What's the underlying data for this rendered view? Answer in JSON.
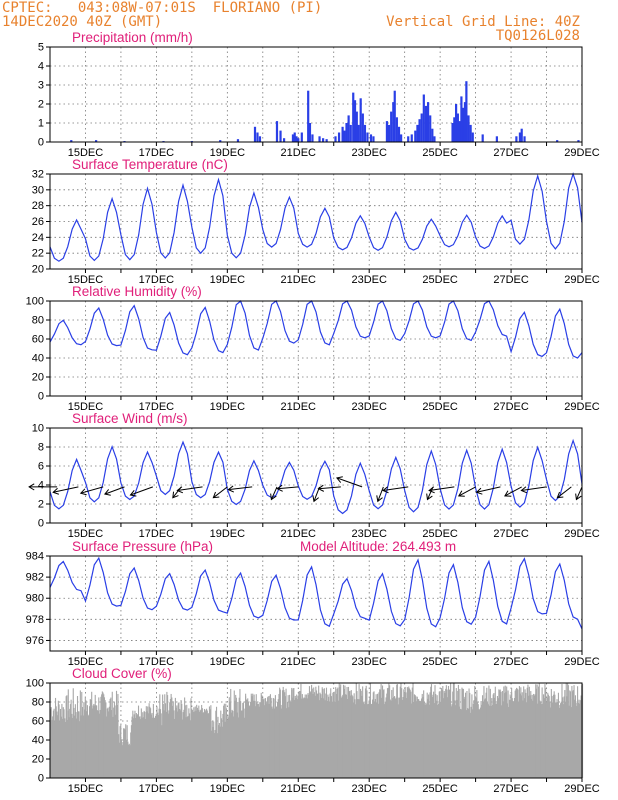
{
  "header": {
    "line1_left": "CPTEC:   043:08W-07:01S  FLORIANO (PI)",
    "line2_left": "14DEC2020 40Z (GMT)",
    "line1_right": "Vertical Grid Line: 40Z",
    "line2_right": "TQ0126L028"
  },
  "colors": {
    "header": "#e8822e",
    "panel_title": "#e0207a",
    "series": "#2a3fe6",
    "cloud": "#a8a8a8"
  },
  "x_tick_labels": [
    "15DEC",
    "17DEC",
    "19DEC",
    "21DEC",
    "23DEC",
    "25DEC",
    "27DEC",
    "29DEC"
  ],
  "chart_data": [
    {
      "type": "bar",
      "title": "Precipitation (mm/h)",
      "ylim": [
        0,
        5
      ],
      "yticks": [
        0,
        1,
        2,
        3,
        4,
        5
      ],
      "x_range_days": [
        14,
        29
      ],
      "grid": true,
      "bars": [
        {
          "x": 14.6,
          "y": 0.1
        },
        {
          "x": 15.3,
          "y": 0.1
        },
        {
          "x": 16.1,
          "y": 0.05
        },
        {
          "x": 17.2,
          "y": 0.05
        },
        {
          "x": 18.0,
          "y": 0.05
        },
        {
          "x": 18.8,
          "y": 0.1
        },
        {
          "x": 19.3,
          "y": 0.15
        },
        {
          "x": 19.78,
          "y": 0.8
        },
        {
          "x": 19.85,
          "y": 0.5
        },
        {
          "x": 19.92,
          "y": 0.3
        },
        {
          "x": 20.4,
          "y": 1.1
        },
        {
          "x": 20.5,
          "y": 0.6
        },
        {
          "x": 20.6,
          "y": 0.2
        },
        {
          "x": 20.85,
          "y": 0.4
        },
        {
          "x": 20.9,
          "y": 0.5
        },
        {
          "x": 20.95,
          "y": 0.3
        },
        {
          "x": 21.0,
          "y": 0.2
        },
        {
          "x": 21.1,
          "y": 0.5
        },
        {
          "x": 21.28,
          "y": 2.7
        },
        {
          "x": 21.33,
          "y": 1.0
        },
        {
          "x": 21.4,
          "y": 0.4
        },
        {
          "x": 21.6,
          "y": 0.3
        },
        {
          "x": 21.7,
          "y": 0.2
        },
        {
          "x": 21.8,
          "y": 0.15
        },
        {
          "x": 22.05,
          "y": 0.3
        },
        {
          "x": 22.15,
          "y": 0.5
        },
        {
          "x": 22.25,
          "y": 0.8
        },
        {
          "x": 22.3,
          "y": 0.6
        },
        {
          "x": 22.36,
          "y": 1.0
        },
        {
          "x": 22.42,
          "y": 1.4
        },
        {
          "x": 22.48,
          "y": 0.9
        },
        {
          "x": 22.55,
          "y": 2.6
        },
        {
          "x": 22.6,
          "y": 2.2
        },
        {
          "x": 22.65,
          "y": 1.6
        },
        {
          "x": 22.7,
          "y": 0.9
        },
        {
          "x": 22.76,
          "y": 2.3
        },
        {
          "x": 22.82,
          "y": 1.5
        },
        {
          "x": 22.88,
          "y": 0.9
        },
        {
          "x": 22.95,
          "y": 0.5
        },
        {
          "x": 23.05,
          "y": 0.4
        },
        {
          "x": 23.12,
          "y": 0.3
        },
        {
          "x": 23.5,
          "y": 1.1
        },
        {
          "x": 23.56,
          "y": 0.9
        },
        {
          "x": 23.62,
          "y": 1.6
        },
        {
          "x": 23.68,
          "y": 2.1
        },
        {
          "x": 23.72,
          "y": 2.7
        },
        {
          "x": 23.78,
          "y": 1.3
        },
        {
          "x": 23.84,
          "y": 0.8
        },
        {
          "x": 23.9,
          "y": 0.4
        },
        {
          "x": 24.1,
          "y": 0.3
        },
        {
          "x": 24.2,
          "y": 0.4
        },
        {
          "x": 24.3,
          "y": 0.6
        },
        {
          "x": 24.36,
          "y": 0.9
        },
        {
          "x": 24.42,
          "y": 1.2
        },
        {
          "x": 24.48,
          "y": 1.5
        },
        {
          "x": 24.54,
          "y": 2.5
        },
        {
          "x": 24.6,
          "y": 1.9
        },
        {
          "x": 24.66,
          "y": 2.1
        },
        {
          "x": 24.72,
          "y": 1.4
        },
        {
          "x": 24.78,
          "y": 0.7
        },
        {
          "x": 24.84,
          "y": 0.3
        },
        {
          "x": 25.35,
          "y": 1.0
        },
        {
          "x": 25.4,
          "y": 1.3
        },
        {
          "x": 25.45,
          "y": 2.0
        },
        {
          "x": 25.5,
          "y": 1.5
        },
        {
          "x": 25.55,
          "y": 1.1
        },
        {
          "x": 25.6,
          "y": 2.4
        },
        {
          "x": 25.65,
          "y": 1.8
        },
        {
          "x": 25.7,
          "y": 2.1
        },
        {
          "x": 25.74,
          "y": 3.2
        },
        {
          "x": 25.8,
          "y": 1.4
        },
        {
          "x": 25.86,
          "y": 0.9
        },
        {
          "x": 25.92,
          "y": 0.5
        },
        {
          "x": 26.2,
          "y": 0.4
        },
        {
          "x": 26.6,
          "y": 0.3
        },
        {
          "x": 27.15,
          "y": 0.3
        },
        {
          "x": 27.25,
          "y": 0.5
        },
        {
          "x": 27.3,
          "y": 0.7
        },
        {
          "x": 27.38,
          "y": 0.3
        },
        {
          "x": 28.3,
          "y": 0.1
        },
        {
          "x": 28.9,
          "y": 0.1
        }
      ]
    },
    {
      "type": "line",
      "title": "Surface Temperature (nC)",
      "ylim": [
        20,
        32
      ],
      "yticks": [
        20,
        22,
        24,
        26,
        28,
        30,
        32
      ],
      "x_range_days": [
        14,
        29
      ],
      "grid": true,
      "daily_extremes": {
        "days": [
          14,
          15,
          16,
          17,
          18,
          19,
          20,
          21,
          22,
          23,
          24,
          25,
          26,
          27,
          28,
          29
        ],
        "max": [
          25.8,
          28.3,
          29.5,
          29.9,
          30.6,
          29.0,
          28.6,
          27.3,
          26.4,
          26.8,
          26.0,
          26.5,
          26.4,
          31.1,
          31.7,
          31.5
        ],
        "min": [
          20.6,
          20.5,
          20.5,
          20.7,
          21.3,
          20.8,
          22.3,
          22.4,
          22.1,
          22.0,
          22.1,
          22.5,
          22.3,
          22.5,
          21.8,
          21.7
        ]
      }
    },
    {
      "type": "line",
      "title": "Relative Humidity (%)",
      "ylim": [
        0,
        100
      ],
      "yticks": [
        0,
        20,
        40,
        60,
        80,
        100
      ],
      "x_range_days": [
        14,
        29
      ],
      "grid": true,
      "daily_extremes": {
        "days": [
          14,
          15,
          16,
          17,
          18,
          19,
          20,
          21,
          22,
          23,
          24,
          25,
          26,
          27,
          28,
          29
        ],
        "max": [
          78,
          90,
          92,
          85,
          90,
          100,
          100,
          100,
          100,
          100,
          100,
          100,
          100,
          85,
          88,
          80
        ],
        "min": [
          52,
          50,
          45,
          40,
          42,
          44,
          52,
          50,
          58,
          55,
          58,
          55,
          60,
          38,
          36,
          38
        ]
      }
    },
    {
      "type": "line",
      "title": "Surface Wind (m/s)",
      "ylim": [
        0,
        10
      ],
      "yticks": [
        0,
        2,
        4,
        6,
        8,
        10
      ],
      "x_range_days": [
        14,
        29
      ],
      "grid": true,
      "daily_extremes": {
        "days": [
          14,
          15,
          16,
          17,
          18,
          19,
          20,
          21,
          22,
          23,
          24,
          25,
          26,
          27,
          28,
          29
        ],
        "max": [
          6.3,
          7.6,
          7.1,
          8.1,
          7.1,
          6.2,
          6.1,
          6.2,
          5.9,
          6.5,
          7.1,
          7.2,
          7.3,
          7.5,
          8.2,
          6.4
        ],
        "min": [
          1.1,
          1.8,
          2.1,
          2.6,
          2.3,
          1.6,
          2.4,
          2.2,
          0.6,
          1.1,
          0.7,
          1.0,
          1.0,
          1.2,
          1.9,
          2.4
        ]
      },
      "wind_barbs": [
        {
          "day": 14.2,
          "u": -1.0,
          "v": 0.0
        },
        {
          "day": 14.8,
          "u": -0.9,
          "v": -0.3
        },
        {
          "day": 15.5,
          "u": -0.8,
          "v": -0.35
        },
        {
          "day": 16.1,
          "u": -0.7,
          "v": -0.4
        },
        {
          "day": 16.9,
          "u": -0.8,
          "v": -0.45
        },
        {
          "day": 17.7,
          "u": -0.3,
          "v": -0.6
        },
        {
          "day": 18.3,
          "u": -0.9,
          "v": -0.2
        },
        {
          "day": 19.0,
          "u": -0.5,
          "v": -0.6
        },
        {
          "day": 19.7,
          "u": -0.85,
          "v": -0.15
        },
        {
          "day": 20.4,
          "u": -0.2,
          "v": -0.7
        },
        {
          "day": 21.0,
          "u": -0.75,
          "v": -0.1
        },
        {
          "day": 21.6,
          "u": -0.2,
          "v": -0.8
        },
        {
          "day": 22.2,
          "u": -0.8,
          "v": -0.1
        },
        {
          "day": 22.8,
          "u": -0.9,
          "v": 0.5
        },
        {
          "day": 23.4,
          "u": -0.2,
          "v": -0.8
        },
        {
          "day": 24.1,
          "u": -0.9,
          "v": -0.2
        },
        {
          "day": 24.8,
          "u": -0.2,
          "v": -0.7
        },
        {
          "day": 25.4,
          "u": -0.9,
          "v": -0.2
        },
        {
          "day": 26.0,
          "u": -0.6,
          "v": -0.5
        },
        {
          "day": 26.7,
          "u": -0.85,
          "v": -0.3
        },
        {
          "day": 27.3,
          "u": -0.6,
          "v": -0.5
        },
        {
          "day": 28.0,
          "u": -0.9,
          "v": -0.2
        },
        {
          "day": 28.7,
          "u": -0.5,
          "v": -0.6
        },
        {
          "day": 29.0,
          "u": -0.2,
          "v": -0.7
        }
      ]
    },
    {
      "type": "line",
      "title": "Surface Pressure (hPa)",
      "subtitle": "Model Altitude: 264.493 m",
      "ylim": [
        975,
        984
      ],
      "yticks": [
        976,
        978,
        980,
        982,
        984
      ],
      "x_range_days": [
        14,
        29
      ],
      "grid": true,
      "daily_extremes": {
        "days": [
          14,
          15,
          16,
          17,
          18,
          19,
          20,
          21,
          22,
          23,
          24,
          25,
          26,
          27,
          28,
          29
        ],
        "max": [
          983.3,
          983.5,
          982.6,
          982.1,
          982.4,
          982.1,
          981.9,
          982.6,
          981.6,
          982.0,
          983.2,
          982.8,
          983.1,
          983.4,
          982.9,
          982.0
        ],
        "min": [
          980.5,
          978.9,
          978.6,
          978.6,
          978.4,
          977.8,
          977.6,
          976.9,
          977.8,
          977.0,
          976.8,
          977.1,
          977.1,
          978.1,
          977.6,
          976.0
        ]
      }
    },
    {
      "type": "area",
      "title": "Cloud Cover (%)",
      "ylim": [
        0,
        100
      ],
      "yticks": [
        0,
        20,
        40,
        60,
        80,
        100
      ],
      "x_range_days": [
        14,
        29
      ],
      "grid": true,
      "segments": [
        {
          "from": 14.0,
          "to": 14.5,
          "low": 20,
          "high": 88
        },
        {
          "from": 14.5,
          "to": 15.0,
          "low": 10,
          "high": 95
        },
        {
          "from": 15.0,
          "to": 15.9,
          "low": 30,
          "high": 92
        },
        {
          "from": 15.9,
          "to": 16.3,
          "low": 2,
          "high": 60
        },
        {
          "from": 16.3,
          "to": 17.0,
          "low": 40,
          "high": 80
        },
        {
          "from": 17.0,
          "to": 17.4,
          "low": 0,
          "high": 92
        },
        {
          "from": 17.4,
          "to": 18.0,
          "low": 30,
          "high": 85
        },
        {
          "from": 18.0,
          "to": 18.5,
          "low": 55,
          "high": 78
        },
        {
          "from": 18.5,
          "to": 19.0,
          "low": 5,
          "high": 80
        },
        {
          "from": 19.0,
          "to": 19.5,
          "low": 15,
          "high": 95
        },
        {
          "from": 19.5,
          "to": 20.0,
          "low": 55,
          "high": 90
        },
        {
          "from": 20.0,
          "to": 20.8,
          "low": 45,
          "high": 96
        },
        {
          "from": 20.8,
          "to": 21.5,
          "low": 60,
          "high": 100
        },
        {
          "from": 21.5,
          "to": 22.5,
          "low": 55,
          "high": 100
        },
        {
          "from": 22.5,
          "to": 23.5,
          "low": 50,
          "high": 100
        },
        {
          "from": 23.5,
          "to": 24.5,
          "low": 50,
          "high": 100
        },
        {
          "from": 24.5,
          "to": 25.5,
          "low": 45,
          "high": 100
        },
        {
          "from": 25.5,
          "to": 26.2,
          "low": 30,
          "high": 100
        },
        {
          "from": 26.2,
          "to": 27.0,
          "low": 45,
          "high": 98
        },
        {
          "from": 27.0,
          "to": 28.0,
          "low": 50,
          "high": 100
        },
        {
          "from": 28.0,
          "to": 29.0,
          "low": 40,
          "high": 100
        }
      ]
    }
  ]
}
